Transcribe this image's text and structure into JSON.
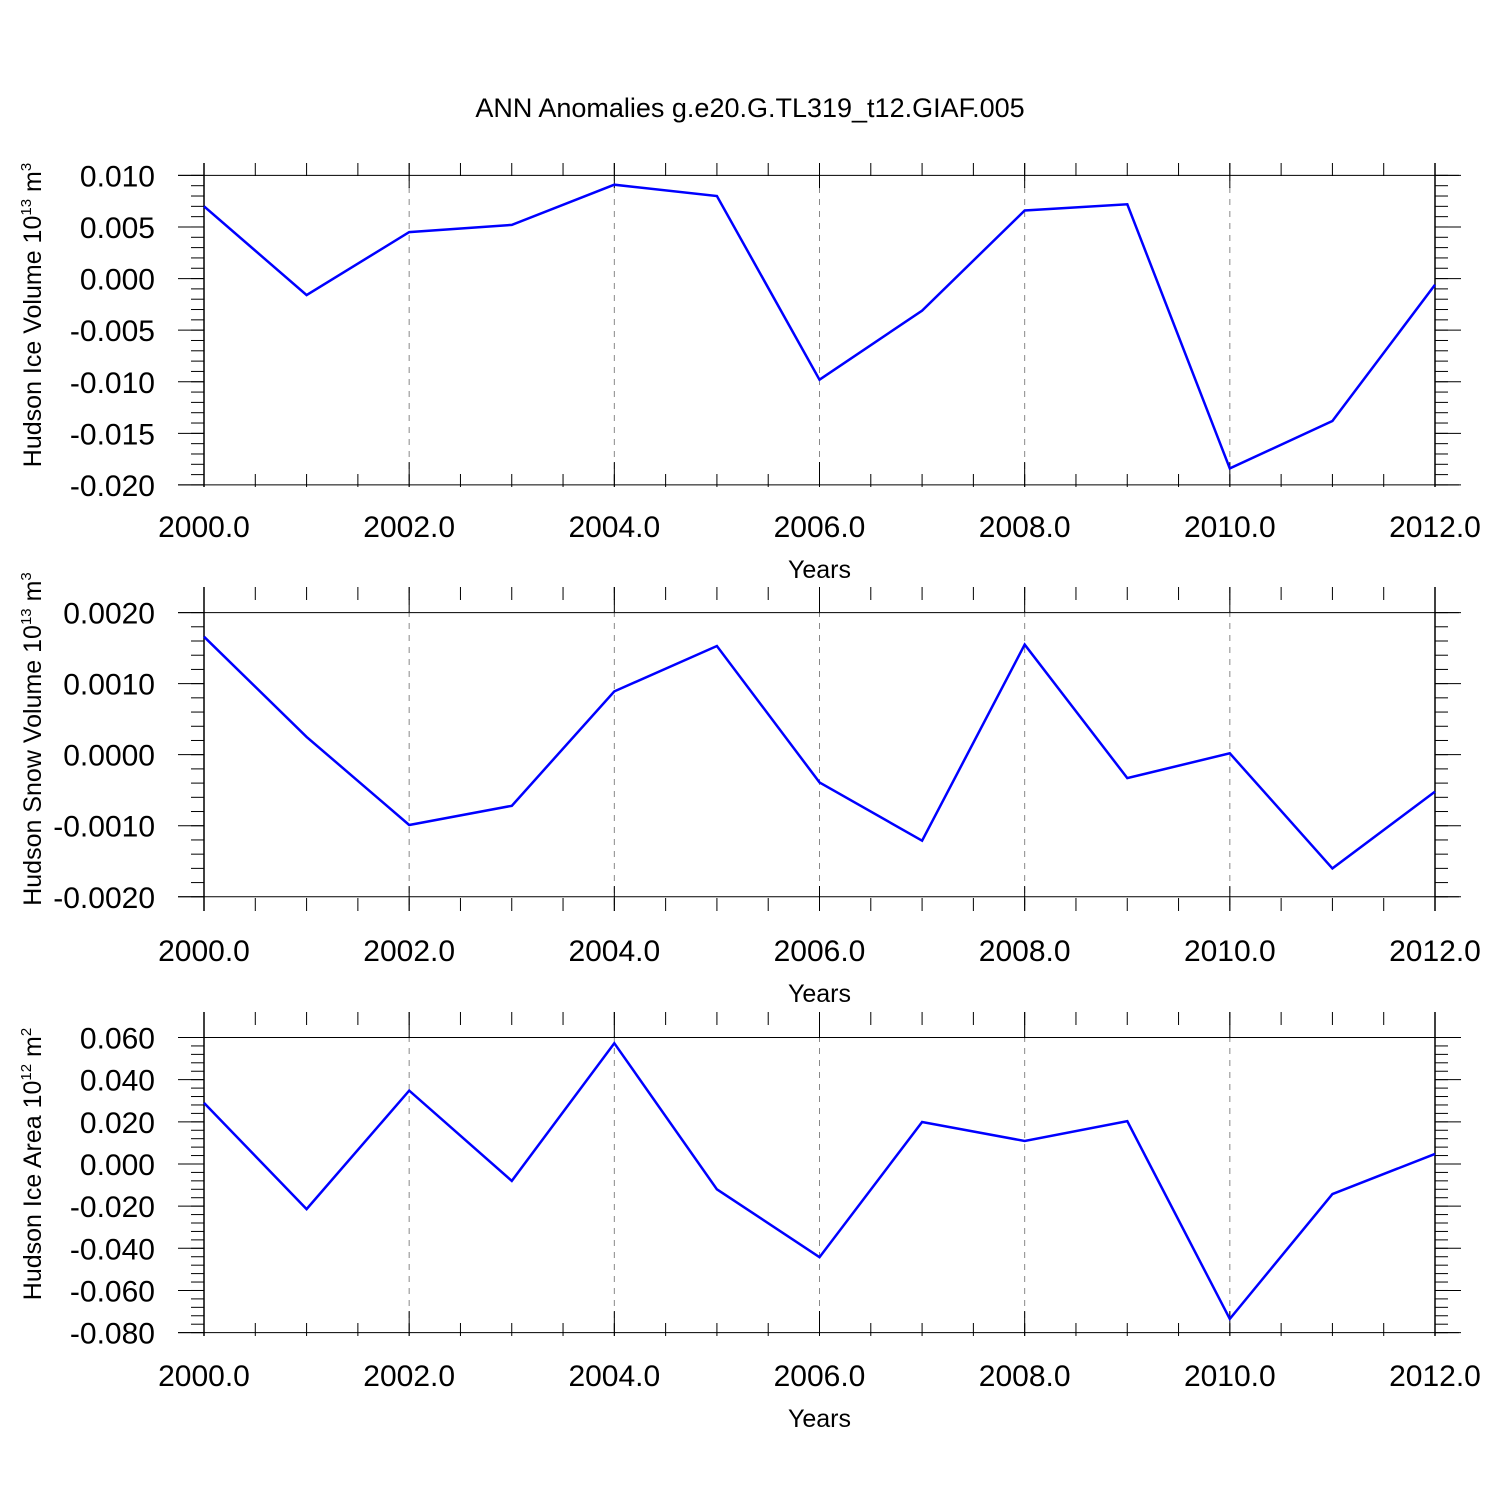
{
  "title": "ANN Anomalies g.e20.G.TL319_t12.GIAF.005",
  "colors": {
    "series": "#0000ff",
    "axis": "#000000",
    "grid": "#888888"
  },
  "chart_data": [
    {
      "type": "line",
      "xlabel": "Years",
      "ylabel": "Hudson Ice Volume 10",
      "ylabel_exp": "13",
      "ylabel_unit": " m",
      "ylabel_unit_exp": "3",
      "xlim": [
        2000,
        2012
      ],
      "ylim": [
        -0.0202,
        0.0112
      ],
      "x_ticks": [
        2000,
        2002,
        2004,
        2006,
        2008,
        2010,
        2012
      ],
      "x_tick_labels": [
        "2000.0",
        "2002.0",
        "2004.0",
        "2006.0",
        "2008.0",
        "2010.0",
        "2012.0"
      ],
      "y_ticks": [
        0.01,
        0.005,
        0.0,
        -0.005,
        -0.01,
        -0.015,
        -0.02
      ],
      "y_tick_labels": [
        "0.010",
        "0.005",
        "0.000",
        "-0.005",
        "-0.010",
        "-0.015",
        "-0.020"
      ],
      "grid": "vertical dashed at major x ticks",
      "x": [
        2000,
        2001,
        2002,
        2003,
        2004,
        2005,
        2006,
        2007,
        2008,
        2009,
        2010,
        2011,
        2012
      ],
      "values": [
        0.007,
        -0.0016,
        0.0045,
        0.0052,
        0.0091,
        0.008,
        -0.0098,
        -0.0031,
        0.0066,
        0.0072,
        -0.0184,
        -0.0138,
        -0.0006
      ]
    },
    {
      "type": "line",
      "xlabel": "Years",
      "ylabel": "Hudson Snow Volume 10",
      "ylabel_exp": "13",
      "ylabel_unit": " m",
      "ylabel_unit_exp": "3",
      "xlim": [
        2000,
        2012
      ],
      "ylim": [
        -0.0022,
        0.00236
      ],
      "x_ticks": [
        2000,
        2002,
        2004,
        2006,
        2008,
        2010,
        2012
      ],
      "x_tick_labels": [
        "2000.0",
        "2002.0",
        "2004.0",
        "2006.0",
        "2008.0",
        "2010.0",
        "2012.0"
      ],
      "y_ticks": [
        0.002,
        0.001,
        0.0,
        -0.001,
        -0.002
      ],
      "y_tick_labels": [
        "0.0020",
        "0.0010",
        "0.0000",
        "-0.0010",
        "-0.0020"
      ],
      "grid": "vertical dashed at major x ticks",
      "x": [
        2000,
        2001,
        2002,
        2003,
        2004,
        2005,
        2006,
        2007,
        2008,
        2009,
        2010,
        2011,
        2012
      ],
      "values": [
        0.00166,
        0.00025,
        -0.00099,
        -0.00072,
        0.00089,
        0.00153,
        -0.00039,
        -0.00121,
        0.00155,
        -0.00033,
        2e-05,
        -0.0016,
        -0.00052
      ]
    },
    {
      "type": "line",
      "xlabel": "Years",
      "ylabel": "Hudson Ice Area 10",
      "ylabel_exp": "12",
      "ylabel_unit": " m",
      "ylabel_unit_exp": "2",
      "xlim": [
        2000,
        2012
      ],
      "ylim": [
        -0.0816,
        0.0721
      ],
      "x_ticks": [
        2000,
        2002,
        2004,
        2006,
        2008,
        2010,
        2012
      ],
      "x_tick_labels": [
        "2000.0",
        "2002.0",
        "2004.0",
        "2006.0",
        "2008.0",
        "2010.0",
        "2012.0"
      ],
      "y_ticks": [
        0.06,
        0.04,
        0.02,
        0.0,
        -0.02,
        -0.04,
        -0.06,
        -0.08
      ],
      "y_tick_labels": [
        "0.060",
        "0.040",
        "0.020",
        "0.000",
        "-0.020",
        "-0.040",
        "-0.060",
        "-0.080"
      ],
      "grid": "vertical dashed at major x ticks",
      "x": [
        2000,
        2001,
        2002,
        2003,
        2004,
        2005,
        2006,
        2007,
        2008,
        2009,
        2010,
        2011,
        2012
      ],
      "values": [
        0.029,
        -0.0214,
        0.0348,
        -0.008,
        0.0573,
        -0.012,
        -0.0442,
        0.0199,
        0.0109,
        0.0203,
        -0.0735,
        -0.0143,
        0.0048
      ]
    }
  ]
}
